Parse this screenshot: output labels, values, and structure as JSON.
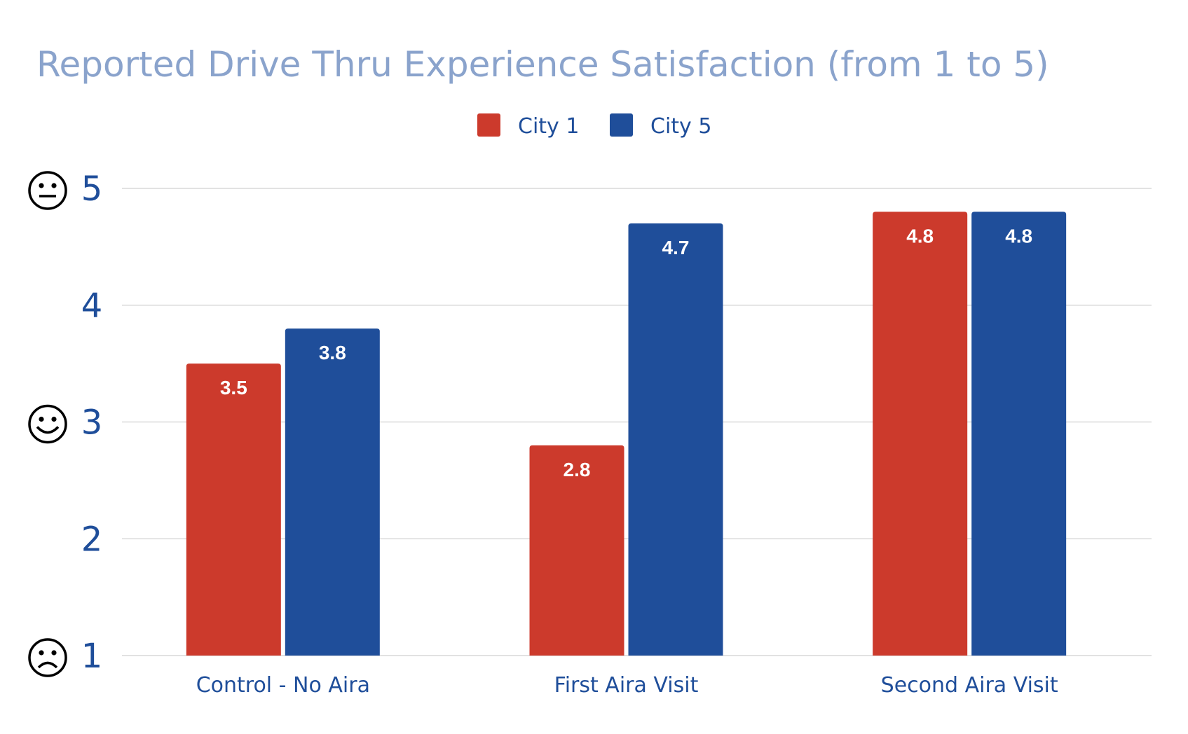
{
  "chart_data": {
    "type": "bar",
    "title": "Reported Drive Thru Experience Satisfaction (from 1 to 5)",
    "xlabel": "",
    "ylabel": "",
    "categories": [
      "Control - No Aira",
      "First Aira Visit",
      "Second Aira Visit"
    ],
    "series": [
      {
        "name": "City 1",
        "color": "#cc3a2c",
        "values": [
          3.5,
          2.8,
          4.8
        ]
      },
      {
        "name": "City 5",
        "color": "#1f4e9a",
        "values": [
          3.8,
          4.7,
          4.8
        ]
      }
    ],
    "data_labels": [
      [
        "3.5",
        "2.8",
        "4.8"
      ],
      [
        "3.8",
        "4.7",
        "4.8"
      ]
    ],
    "ylim": [
      1,
      5
    ],
    "yticks": [
      1,
      2,
      3,
      4,
      5
    ],
    "ytick_labels": [
      "1",
      "2",
      "3",
      "4",
      "5"
    ],
    "ytick_icons": {
      "1": "frowning-face-icon",
      "3": "smiling-face-icon",
      "5": "neutral-face-icon"
    },
    "grid": true,
    "legend": "top-center"
  },
  "colors": {
    "title": "#8aa3cc",
    "text": "#1f4e9a",
    "grid": "#d9d9d9"
  }
}
